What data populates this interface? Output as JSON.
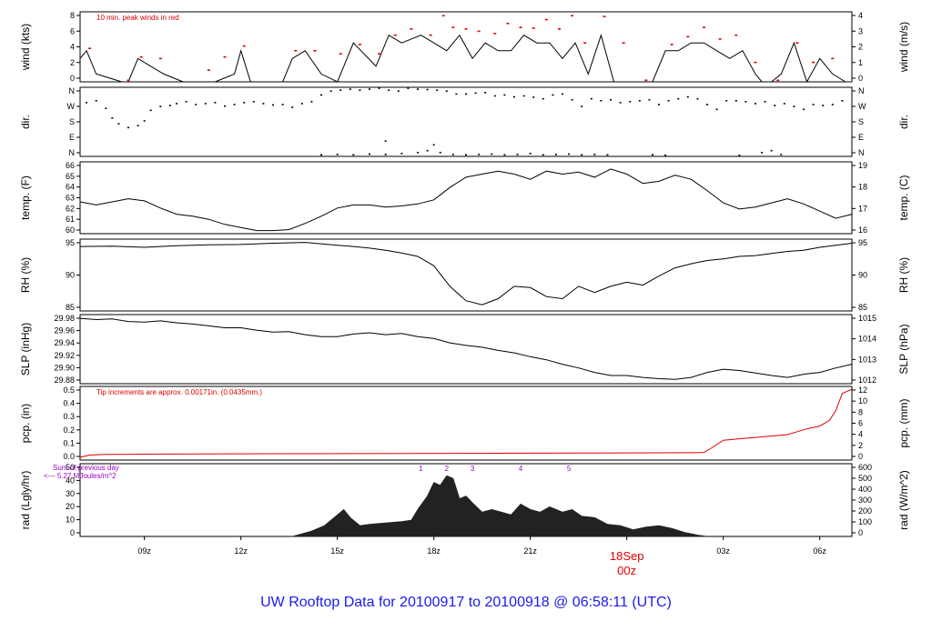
{
  "title": "UW Rooftop Data for 20100917  to  20100918 @ 06:58:11  (UTC)",
  "colors": {
    "accent_red": "#dd0000",
    "title_blue": "#1a1aee",
    "purple": "#9900cc",
    "axis": "#000000",
    "fill_dark": "#222222"
  },
  "x_axis": {
    "tick_labels": [
      "09z",
      "12z",
      "15z",
      "18z",
      "21z",
      "00z",
      "03z",
      "06z"
    ],
    "hours_from_start": [
      2,
      5,
      8,
      11,
      14,
      17,
      20,
      23
    ],
    "date_label": "18Sep",
    "date_hours": 17
  },
  "chart_data": [
    {
      "type": "line",
      "key": "wind",
      "ylabel_left": "wind (kts)",
      "ylabel_right": "wind (m/s)",
      "ylim": [
        0,
        9
      ],
      "left_ticks": [
        "0",
        "2",
        "4",
        "6",
        "8"
      ],
      "right_ticks": [
        "0",
        "1",
        "2",
        "3",
        "4"
      ],
      "annotation": "10 min. peak winds in red",
      "series": [
        {
          "name": "wind speed",
          "color": "#000000",
          "x": [
            0,
            0.2,
            0.5,
            1.3,
            1.5,
            1.8,
            2.2,
            2.6,
            3.2,
            4.2,
            4.8,
            5.0,
            5.3,
            6.0,
            6.3,
            6.6,
            7.0,
            7.5,
            8.0,
            8.5,
            9.2,
            9.6,
            10.0,
            10.6,
            11.0,
            11.4,
            11.8,
            12.2,
            12.6,
            13.0,
            13.4,
            13.8,
            14.2,
            14.6,
            15.0,
            15.4,
            15.8,
            16.2,
            16.6,
            17.0,
            17.4,
            17.8,
            18.2,
            18.6,
            19.0,
            19.4,
            19.8,
            20.2,
            20.6,
            21.0,
            21.2,
            21.5,
            21.8,
            22.2,
            22.6,
            23.0,
            23.4,
            23.8
          ],
          "y": [
            3,
            4,
            1,
            0,
            0,
            3,
            2,
            1,
            0,
            0,
            1,
            4,
            0,
            0,
            0,
            3,
            4,
            1,
            0,
            5,
            2,
            6,
            5,
            6,
            5,
            4,
            6,
            3,
            5,
            4,
            4,
            6,
            5,
            5,
            3,
            5,
            1,
            6,
            0,
            0,
            0,
            0,
            4,
            4,
            5,
            5,
            4,
            3,
            4,
            1,
            0,
            0,
            1,
            5,
            0,
            3,
            1,
            0
          ]
        },
        {
          "name": "peak",
          "color": "#dd0000",
          "x": [
            0.3,
            1.5,
            1.9,
            2.5,
            4.0,
            4.5,
            5.1,
            6.7,
            7.3,
            8.1,
            8.7,
            9.3,
            9.8,
            10.3,
            10.9,
            11.3,
            11.6,
            12.0,
            12.4,
            12.9,
            13.3,
            13.7,
            14.1,
            14.5,
            14.9,
            15.3,
            15.7,
            16.3,
            16.9,
            17.6,
            18.4,
            18.9,
            19.4,
            19.9,
            20.4,
            21.0,
            21.7,
            22.3,
            22.8,
            23.4
          ],
          "y": [
            4.3,
            0.2,
            3.2,
            3.0,
            1.5,
            3.2,
            4.6,
            4.0,
            4.0,
            3.6,
            4.8,
            3.6,
            6.0,
            6.8,
            6.0,
            8.5,
            7.0,
            6.8,
            6.5,
            6.2,
            7.5,
            7.0,
            6.9,
            8.0,
            6.8,
            8.5,
            5.0,
            8.4,
            5.0,
            0.2,
            4.8,
            5.8,
            7.0,
            5.5,
            6.0,
            2.5,
            0.2,
            5.0,
            2.5,
            3.0
          ]
        }
      ]
    },
    {
      "type": "scatter",
      "key": "direction",
      "ylabel_left": "dir.",
      "ylabel_right": "dir.",
      "ylim": [
        0,
        360
      ],
      "left_ticks": [
        "N",
        "E",
        "S",
        "W",
        "N"
      ],
      "right_ticks": [
        "N",
        "E",
        "S",
        "W",
        "N"
      ],
      "series": [
        {
          "name": "direction",
          "color": "#000000",
          "x": [
            0.2,
            0.5,
            0.8,
            1.0,
            1.2,
            1.5,
            1.8,
            2.0,
            2.2,
            2.5,
            2.8,
            3.0,
            3.3,
            3.6,
            3.9,
            4.2,
            4.5,
            4.8,
            5.1,
            5.4,
            5.7,
            6.0,
            6.3,
            6.6,
            6.9,
            7.2,
            7.5,
            7.8,
            8.1,
            8.4,
            8.7,
            9.0,
            9.3,
            9.6,
            9.9,
            10.2,
            10.5,
            10.8,
            11.1,
            11.4,
            11.7,
            12.0,
            12.3,
            12.6,
            12.9,
            13.2,
            13.5,
            13.8,
            14.1,
            14.4,
            14.7,
            15.0,
            15.3,
            15.6,
            15.9,
            16.2,
            16.5,
            16.8,
            17.1,
            17.4,
            17.7,
            18.0,
            18.3,
            18.6,
            18.9,
            19.2,
            19.5,
            19.8,
            20.1,
            20.4,
            20.7,
            21.0,
            21.3,
            21.6,
            21.9,
            22.2,
            22.5,
            22.8,
            23.1,
            23.4,
            23.7,
            7.5,
            8.0,
            8.5,
            9.0,
            9.5,
            10.0,
            10.5,
            10.8,
            11.2,
            11.6,
            12.0,
            12.4,
            12.8,
            13.2,
            13.6,
            14.0,
            14.4,
            14.8,
            15.2,
            15.6,
            16.0,
            16.4,
            17.8,
            18.2,
            20.5,
            21.2,
            21.5,
            21.8,
            9.5,
            11.0
          ],
          "y": [
            280,
            290,
            250,
            200,
            170,
            150,
            160,
            185,
            240,
            260,
            265,
            275,
            285,
            270,
            275,
            280,
            262,
            270,
            280,
            285,
            275,
            268,
            270,
            255,
            275,
            285,
            320,
            340,
            345,
            350,
            345,
            350,
            355,
            345,
            340,
            355,
            350,
            348,
            345,
            340,
            325,
            325,
            330,
            332,
            315,
            320,
            310,
            315,
            308,
            300,
            320,
            325,
            295,
            260,
            300,
            290,
            295,
            280,
            285,
            290,
            295,
            270,
            290,
            300,
            310,
            300,
            270,
            245,
            290,
            290,
            285,
            275,
            285,
            265,
            275,
            260,
            245,
            270,
            265,
            270,
            290,
            8,
            10,
            8,
            12,
            10,
            15,
            20,
            30,
            20,
            10,
            8,
            10,
            12,
            8,
            10,
            15,
            8,
            10,
            12,
            8,
            10,
            8,
            8,
            6,
            5,
            20,
            30,
            10,
            80,
            60
          ]
        }
      ]
    },
    {
      "type": "line",
      "key": "temperature",
      "ylabel_left": "temp. (F)",
      "ylabel_right": "temp. (C)",
      "ylim": [
        59.5,
        66.5
      ],
      "left_ticks": [
        "60",
        "61",
        "62",
        "63",
        "64",
        "65",
        "66"
      ],
      "right_ticks": [
        "16",
        "17",
        "18",
        "19"
      ],
      "series": [
        {
          "name": "temperature",
          "color": "#000000",
          "x": [
            0,
            0.5,
            1.0,
            1.5,
            2.0,
            2.5,
            3.0,
            3.5,
            4.0,
            4.5,
            5.0,
            5.5,
            6.0,
            6.5,
            7.0,
            7.5,
            8.0,
            8.5,
            9.0,
            9.5,
            10.0,
            10.5,
            11.0,
            11.5,
            12.0,
            12.5,
            13.0,
            13.5,
            14.0,
            14.5,
            15.0,
            15.5,
            16.0,
            16.5,
            17.0,
            17.5,
            18.0,
            18.5,
            19.0,
            19.5,
            20.0,
            20.5,
            21.0,
            21.5,
            22.0,
            22.5,
            23.0,
            23.5,
            24.0
          ],
          "y": [
            62.6,
            62.3,
            62.6,
            62.9,
            62.7,
            62.0,
            61.4,
            61.2,
            60.9,
            60.4,
            60.1,
            59.8,
            59.8,
            59.9,
            60.5,
            61.2,
            62.0,
            62.3,
            62.3,
            62.1,
            62.2,
            62.4,
            62.8,
            64.0,
            65.0,
            65.3,
            65.6,
            65.3,
            64.8,
            65.6,
            65.3,
            65.5,
            65.0,
            65.8,
            65.3,
            64.4,
            64.6,
            65.2,
            64.8,
            63.7,
            62.5,
            61.9,
            62.1,
            62.5,
            62.9,
            62.4,
            61.7,
            61.0,
            61.4
          ]
        }
      ]
    },
    {
      "type": "line",
      "key": "rh",
      "ylabel_left": "RH (%)",
      "ylabel_right": "RH (%)",
      "ylim": [
        81.5,
        99
      ],
      "left_ticks": [
        "85",
        "90",
        "95"
      ],
      "right_ticks": [
        "85",
        "90",
        "95"
      ],
      "series": [
        {
          "name": "relative humidity",
          "color": "#000000",
          "x": [
            0,
            1,
            2,
            3,
            4,
            5,
            6,
            7,
            8,
            8.5,
            9,
            9.5,
            10,
            10.5,
            11,
            11.5,
            12,
            12.5,
            13,
            13.5,
            14,
            14.5,
            15,
            15.5,
            16,
            16.5,
            17,
            17.5,
            18,
            18.5,
            19,
            19.5,
            20,
            20.5,
            21,
            21.5,
            22,
            22.5,
            23,
            23.5,
            24
          ],
          "y": [
            97.2,
            97.3,
            97.0,
            97.4,
            97.6,
            97.7,
            98.0,
            98.2,
            97.5,
            97.2,
            96.8,
            96.3,
            95.6,
            94.8,
            92.5,
            87.5,
            84.0,
            83.0,
            84.5,
            87.5,
            87.2,
            85.0,
            84.5,
            87.5,
            86.0,
            87.5,
            88.5,
            87.8,
            90.0,
            92.0,
            93.0,
            93.8,
            94.2,
            94.8,
            95.0,
            95.5,
            96.0,
            96.3,
            97.0,
            97.5,
            98.0
          ]
        }
      ]
    },
    {
      "type": "line",
      "key": "slp",
      "ylabel_left": "SLP (inHg)",
      "ylabel_right": "SLP (hPa)",
      "ylim": [
        29.875,
        29.985
      ],
      "left_ticks": [
        "29.88",
        "29.90",
        "29.92",
        "29.94",
        "29.96",
        "29.98"
      ],
      "right_ticks": [
        "1012",
        "1013",
        "1014",
        "1015"
      ],
      "series": [
        {
          "name": "sea level pressure",
          "color": "#000000",
          "x": [
            0,
            0.5,
            1.0,
            1.5,
            2.0,
            2.5,
            3.0,
            3.5,
            4.0,
            4.5,
            5.0,
            5.5,
            6.0,
            6.5,
            7.0,
            7.5,
            8.0,
            8.5,
            9.0,
            9.5,
            10.0,
            10.5,
            11.0,
            11.5,
            12.0,
            12.5,
            13.0,
            13.5,
            14.0,
            14.5,
            15.0,
            15.5,
            16.0,
            16.5,
            17.0,
            17.5,
            18.0,
            18.5,
            19.0,
            19.5,
            20.0,
            20.5,
            21.0,
            21.5,
            22.0,
            22.5,
            23.0,
            23.5,
            24.0
          ],
          "y": [
            29.979,
            29.977,
            29.978,
            29.974,
            29.973,
            29.975,
            29.972,
            29.97,
            29.967,
            29.964,
            29.964,
            29.96,
            29.957,
            29.958,
            29.953,
            29.95,
            29.95,
            29.954,
            29.956,
            29.953,
            29.955,
            29.95,
            29.947,
            29.94,
            29.936,
            29.933,
            29.928,
            29.924,
            29.918,
            29.913,
            29.906,
            29.9,
            29.893,
            29.888,
            29.888,
            29.885,
            29.883,
            29.882,
            29.885,
            29.893,
            29.898,
            29.896,
            29.892,
            29.888,
            29.885,
            29.89,
            29.893,
            29.9,
            29.906
          ]
        }
      ]
    },
    {
      "type": "area",
      "key": "precip",
      "ylabel_left": "pcp. (in)",
      "ylabel_right": "pcp. (mm)",
      "ylim": [
        -0.02,
        0.5
      ],
      "left_ticks": [
        "0.0",
        "0.1",
        "0.2",
        "0.3",
        "0.4",
        "0.5"
      ],
      "right_ticks": [
        "0",
        "2",
        "4",
        "6",
        "8",
        "10",
        "12"
      ],
      "annotation": "Tip increments are approx. 0.00171in. (0.0435mm.)",
      "series": [
        {
          "name": "cumulative precipitation",
          "color": "#dd0000",
          "x": [
            0,
            0.3,
            0.8,
            2.0,
            5.0,
            10.0,
            13.0,
            16.0,
            19.0,
            19.4,
            19.6,
            20.0,
            20.5,
            21.0,
            21.5,
            22.0,
            22.3,
            22.6,
            23.0,
            23.3,
            23.5,
            23.7,
            24.0
          ],
          "y": [
            0.0,
            0.015,
            0.02,
            0.022,
            0.024,
            0.026,
            0.028,
            0.03,
            0.032,
            0.034,
            0.06,
            0.12,
            0.13,
            0.14,
            0.15,
            0.16,
            0.18,
            0.2,
            0.22,
            0.26,
            0.33,
            0.45,
            0.48
          ]
        }
      ]
    },
    {
      "type": "area",
      "key": "radiation",
      "ylabel_left": "rad (Lgly/hr)",
      "ylabel_right": "rad (W/m^2)",
      "ylim": [
        0,
        54
      ],
      "left_ticks": [
        "0",
        "10",
        "20",
        "30",
        "40",
        "50"
      ],
      "right_ticks": [
        "0",
        "100",
        "200",
        "300",
        "400",
        "500",
        "600"
      ],
      "annotation_lines": [
        "Sum of previous day",
        "<--- 5.27 MJoules/m^2"
      ],
      "markers": [
        "1",
        "2",
        "3",
        "4",
        "5"
      ],
      "marker_hours": [
        10.6,
        11.4,
        12.2,
        13.7,
        15.2
      ],
      "series": [
        {
          "name": "solar radiation",
          "color": "#222222",
          "x": [
            6.6,
            7.2,
            7.6,
            7.8,
            8.0,
            8.2,
            8.4,
            8.7,
            9.0,
            9.5,
            10.0,
            10.3,
            10.5,
            10.8,
            11.0,
            11.2,
            11.4,
            11.6,
            11.8,
            12.0,
            12.2,
            12.5,
            12.8,
            13.1,
            13.4,
            13.7,
            14.0,
            14.3,
            14.6,
            15.0,
            15.3,
            15.6,
            16.0,
            16.4,
            16.8,
            17.2,
            17.6,
            18.0,
            18.4,
            18.8,
            19.2,
            19.5
          ],
          "y": [
            0,
            4,
            8,
            12,
            16,
            20,
            14,
            8,
            9,
            10,
            11,
            12,
            20,
            30,
            40,
            38,
            45,
            43,
            28,
            30,
            25,
            18,
            20,
            18,
            16,
            24,
            20,
            18,
            22,
            18,
            20,
            15,
            14,
            9,
            8,
            5,
            7,
            8,
            6,
            3,
            1,
            0
          ]
        }
      ]
    }
  ]
}
